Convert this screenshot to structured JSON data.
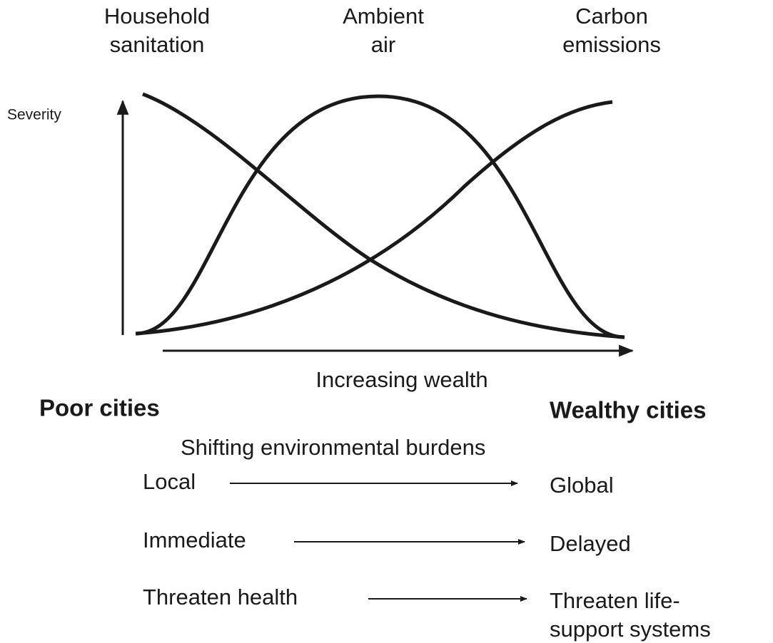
{
  "curve_labels": [
    {
      "lines": [
        "Household",
        "sanitation"
      ]
    },
    {
      "lines": [
        "Ambient",
        "air"
      ]
    },
    {
      "lines": [
        "Carbon",
        "emissions"
      ]
    }
  ],
  "y_axis_label": "Severity",
  "x_axis_label": "Increasing wealth",
  "left_label": "Poor cities",
  "right_label": "Wealthy cities",
  "burdens": {
    "title": "Shifting environmental burdens",
    "rows": [
      {
        "from": "Local",
        "to": [
          "Global"
        ]
      },
      {
        "from": "Immediate",
        "to": [
          "Delayed"
        ]
      },
      {
        "from": "Threaten health",
        "to": [
          "Threaten life-",
          "support systems"
        ]
      }
    ]
  }
}
